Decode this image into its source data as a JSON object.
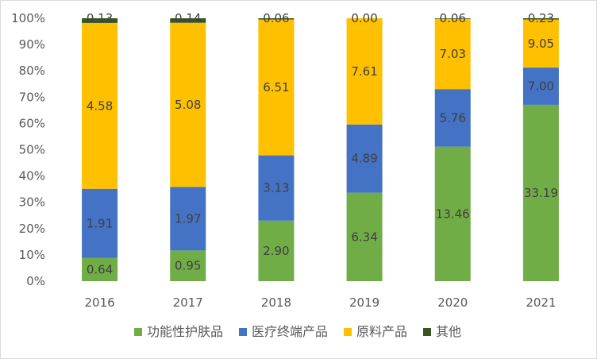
{
  "chart_data": {
    "type": "bar",
    "stacked": "percent",
    "categories": [
      "2016",
      "2017",
      "2018",
      "2019",
      "2020",
      "2021"
    ],
    "series": [
      {
        "name": "功能性护肤品",
        "color": "#70ad47",
        "values": [
          0.64,
          0.95,
          2.9,
          6.34,
          13.46,
          33.19
        ],
        "labels": [
          "0.64",
          "0.95",
          "2.90",
          "6.34",
          "13.46",
          "33.19"
        ]
      },
      {
        "name": "医疗终端产品",
        "color": "#4472c4",
        "values": [
          1.91,
          1.97,
          3.13,
          4.89,
          5.76,
          7.0
        ],
        "labels": [
          "1.91",
          "1.97",
          "3.13",
          "4.89",
          "5.76",
          "7.00"
        ]
      },
      {
        "name": "原料产品",
        "color": "#ffc000",
        "values": [
          4.58,
          5.08,
          6.51,
          7.61,
          7.03,
          9.05
        ],
        "labels": [
          "4.58",
          "5.08",
          "6.51",
          "7.61",
          "7.03",
          "9.05"
        ]
      },
      {
        "name": "其他",
        "color": "#375623",
        "values": [
          0.13,
          0.14,
          0.06,
          0.0,
          0.06,
          0.23
        ],
        "labels": [
          "0.13",
          "0.14",
          "0.06",
          "0.00",
          "0.06",
          "0.23"
        ]
      }
    ],
    "yticks": [
      "0%",
      "10%",
      "20%",
      "30%",
      "40%",
      "50%",
      "60%",
      "70%",
      "80%",
      "90%",
      "100%"
    ],
    "ylim": [
      0,
      100
    ],
    "grid": false,
    "legend_position": "bottom"
  }
}
